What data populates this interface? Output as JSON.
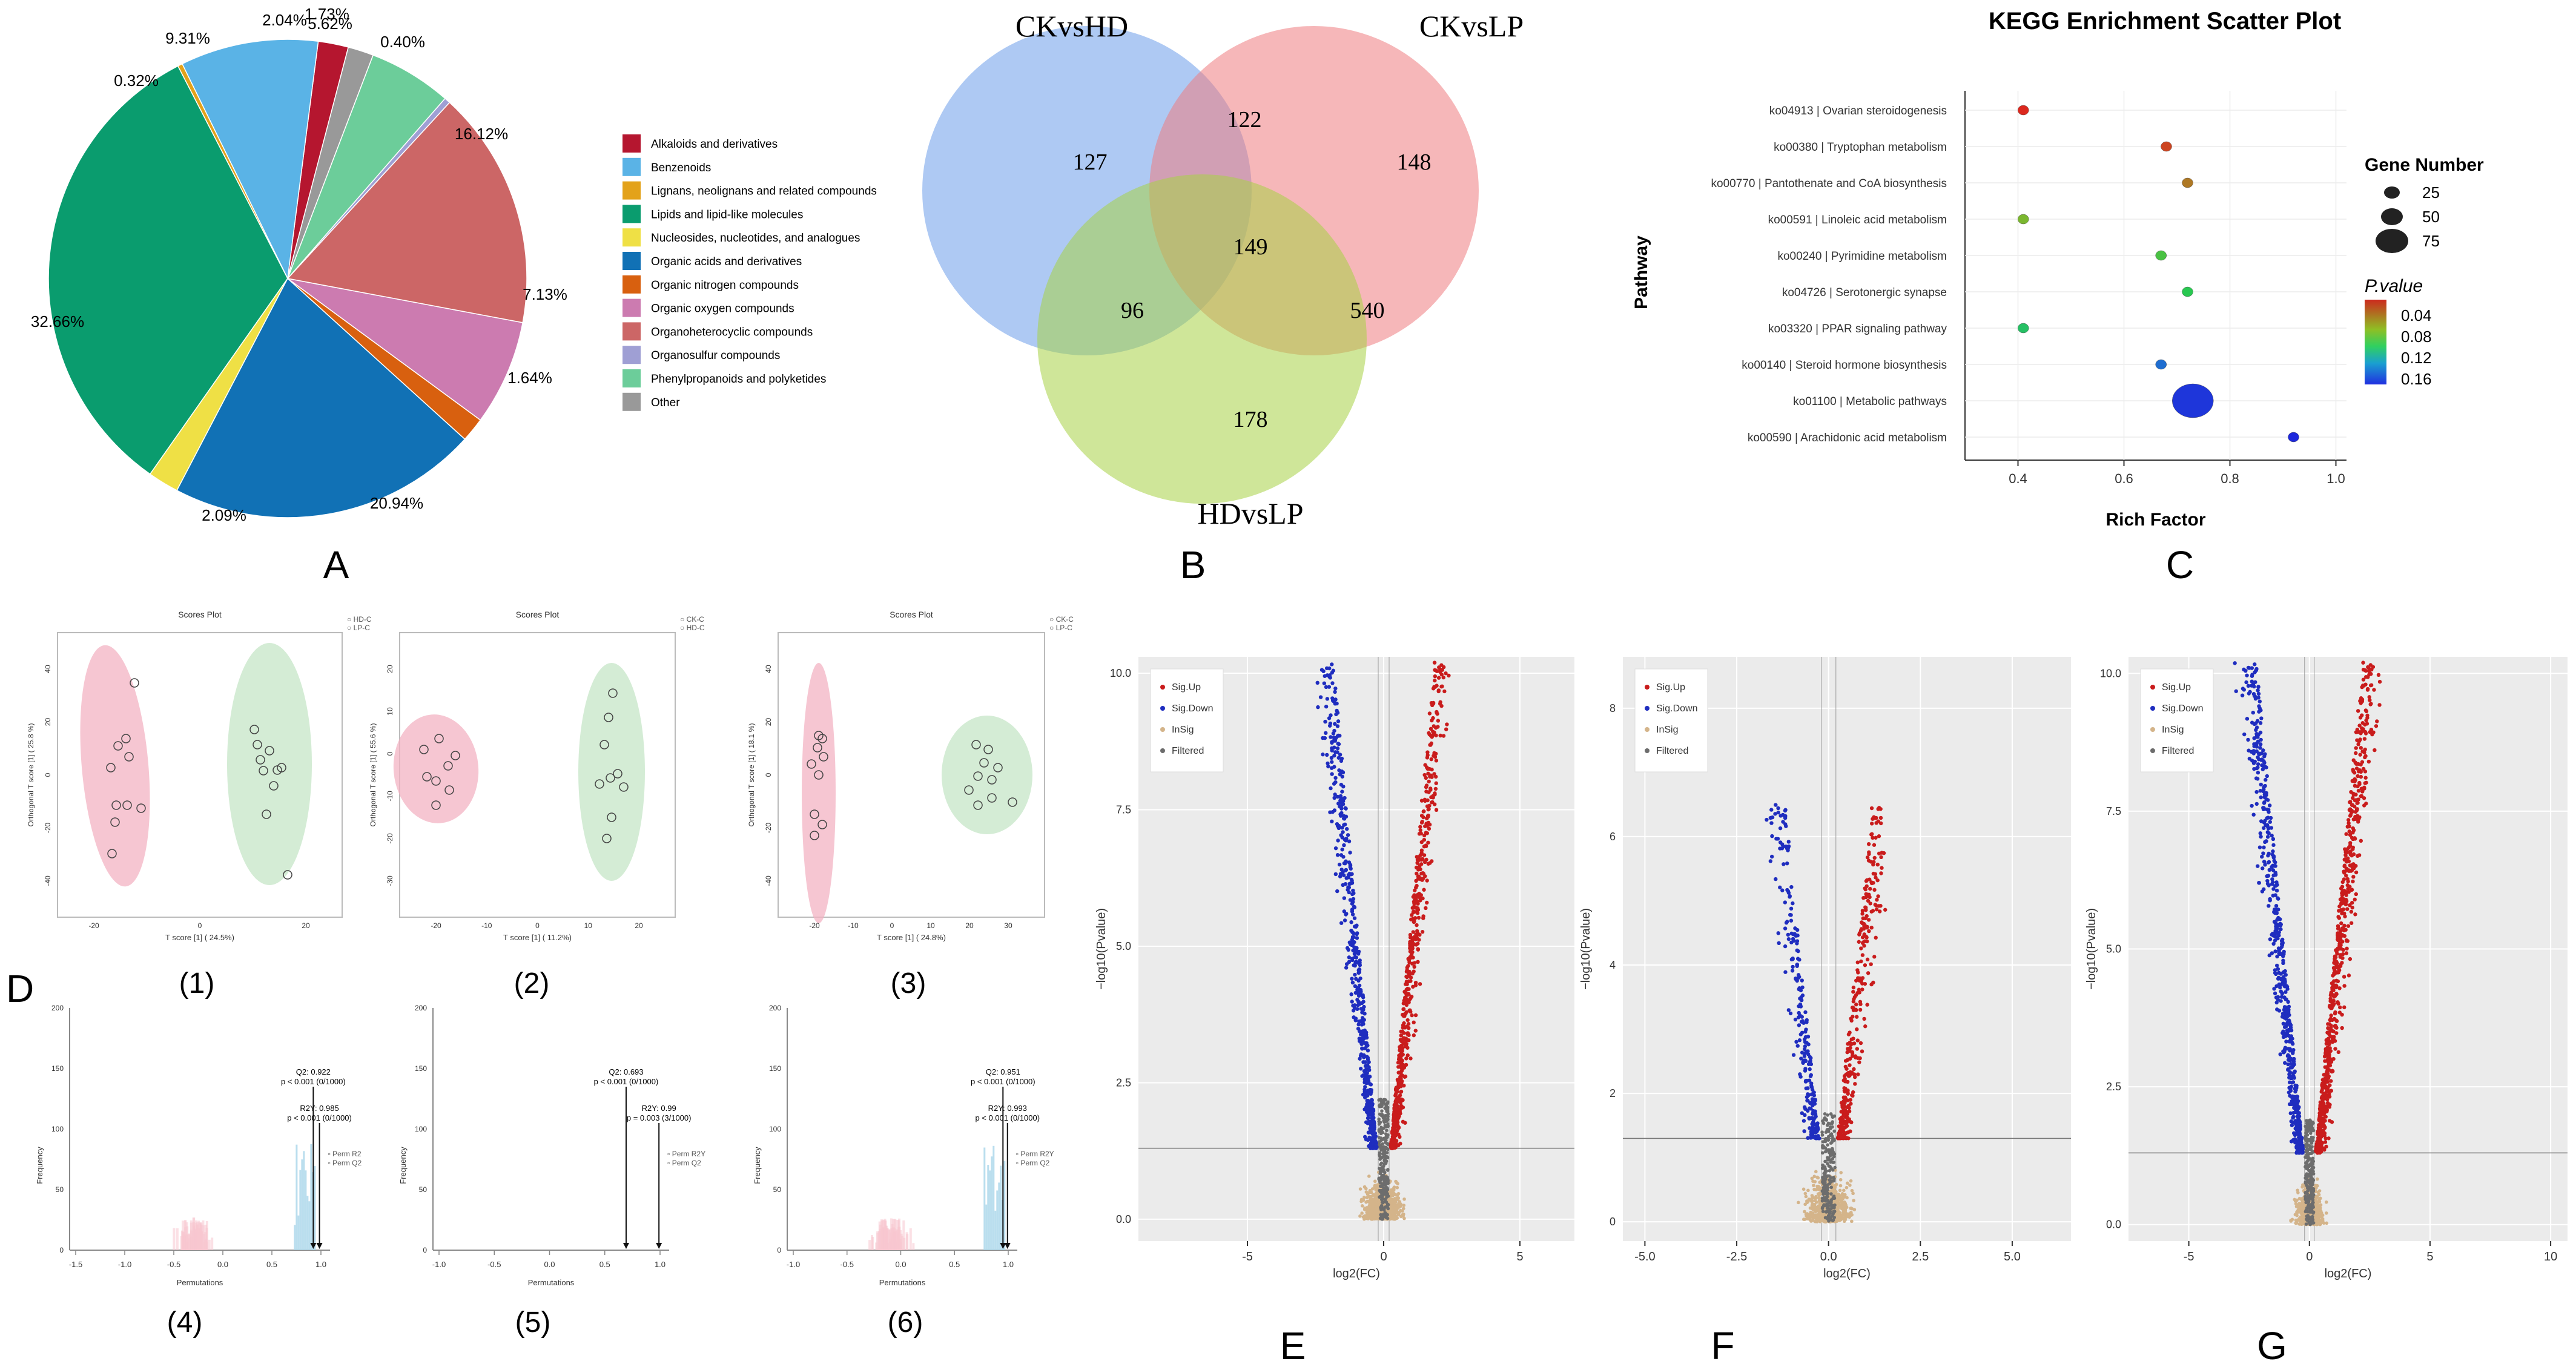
{
  "panel_labels": {
    "A": "A",
    "B": "B",
    "C": "C",
    "D": "D",
    "E": "E",
    "F": "F",
    "G": "G",
    "p1": "(1)",
    "p2": "(2)",
    "p3": "(3)",
    "p4": "(4)",
    "p5": "(5)",
    "p6": "(6)"
  },
  "chart_data": [
    {
      "id": "A",
      "type": "pie",
      "slices": [
        {
          "label": "Alkaloids and derivatives",
          "value": 2.04,
          "color": "#b5162f"
        },
        {
          "label": "Benzenoids",
          "value": 9.31,
          "color": "#5ab3e6"
        },
        {
          "label": "Lignans, neolignans and related compounds",
          "value": 0.32,
          "color": "#e3a21a"
        },
        {
          "label": "Lipids and lipid-like molecules",
          "value": 32.66,
          "color": "#0a9c6e"
        },
        {
          "label": "Nucleosides, nucleotides, and analogues",
          "value": 2.09,
          "color": "#efe045"
        },
        {
          "label": "Organic acids and derivatives",
          "value": 20.94,
          "color": "#1171b5"
        },
        {
          "label": "Organic nitrogen compounds",
          "value": 1.64,
          "color": "#d8600f"
        },
        {
          "label": "Organic oxygen compounds",
          "value": 7.13,
          "color": "#cc7bb0"
        },
        {
          "label": "Organoheterocyclic compounds",
          "value": 16.12,
          "color": "#cc6666"
        },
        {
          "label": "Organosulfur compounds",
          "value": 0.4,
          "color": "#9f9fd4"
        },
        {
          "label": "Phenylpropanoids and polyketides",
          "value": 5.62,
          "color": "#6ccd9a"
        },
        {
          "label": "Other",
          "value": 1.73,
          "color": "#999999"
        }
      ],
      "value_labels": [
        "2.04%",
        "9.31%",
        "0.32%",
        "32.66%",
        "2.09%",
        "20.94%",
        "1.64%",
        "7.13%",
        "16.12%",
        "0.40%",
        "5.62%",
        "1.73%"
      ]
    },
    {
      "id": "B",
      "type": "venn",
      "sets": [
        "CKvsHD",
        "CKvsLP",
        "HDvsLP"
      ],
      "regions": {
        "CKvsHD_only": 127,
        "CKvsLP_only": 148,
        "HDvsLP_only": 178,
        "CKvsHD_CKvsLP": 122,
        "CKvsHD_HDvsLP": 96,
        "CKvsLP_HDvsLP": 540,
        "all": 149
      },
      "region_labels": {
        "CKvsHD_only": "127",
        "CKvsLP_only": "148",
        "HDvsLP_only": "178",
        "CKvsHD_CKvsLP": "122",
        "CKvsHD_HDvsLP": "96",
        "CKvsLP_HDvsLP": "540",
        "all": "149"
      }
    },
    {
      "id": "C",
      "type": "scatter",
      "title": "KEGG Enrichment Scatter Plot",
      "xlabel": "Rich Factor",
      "ylabel": "Pathway",
      "xlim": [
        0.3,
        1.02
      ],
      "xticks": [
        0.4,
        0.6,
        0.8,
        1.0
      ],
      "xtick_labels": [
        "0.4",
        "0.6",
        "0.8",
        "1.0"
      ],
      "points": [
        {
          "pathway": "ko04913 | Ovarian steroidogenesis",
          "rich": 0.41,
          "genes": 4,
          "p": 0.03
        },
        {
          "pathway": "ko00380 | Tryptophan metabolism",
          "rich": 0.68,
          "genes": 6,
          "p": 0.042
        },
        {
          "pathway": "ko00770 | Pantothenate and CoA biosynthesis",
          "rich": 0.72,
          "genes": 4,
          "p": 0.055
        },
        {
          "pathway": "ko00591 | Linoleic acid metabolism",
          "rich": 0.41,
          "genes": 4,
          "p": 0.075
        },
        {
          "pathway": "ko00240 | Pyrimidine metabolism",
          "rich": 0.67,
          "genes": 4,
          "p": 0.09
        },
        {
          "pathway": "ko04726 | Serotonergic synapse",
          "rich": 0.72,
          "genes": 4,
          "p": 0.1
        },
        {
          "pathway": "ko03320 | PPAR signaling pathway",
          "rich": 0.41,
          "genes": 3,
          "p": 0.105
        },
        {
          "pathway": "ko00140 | Steroid hormone biosynthesis",
          "rich": 0.67,
          "genes": 4,
          "p": 0.145
        },
        {
          "pathway": "ko01100 | Metabolic pathways",
          "rich": 0.73,
          "genes": 78,
          "p": 0.165
        },
        {
          "pathway": "ko00590 | Arachidonic acid metabolism",
          "rich": 0.92,
          "genes": 3,
          "p": 0.17
        }
      ],
      "size_legend_title": "Gene Number",
      "size_legend": [
        {
          "label": "25",
          "value": 25
        },
        {
          "label": "50",
          "value": 50
        },
        {
          "label": "75",
          "value": 75
        }
      ],
      "color_legend_title": "P.value",
      "color_legend": [
        "0.04",
        "0.08",
        "0.12",
        "0.16"
      ]
    },
    {
      "id": "D1",
      "type": "scatter",
      "title": "Scores Plot",
      "xlabel": "T score [1] ( 24.5%)",
      "ylabel": "Orthogonal T score [1] ( 25.8 %)",
      "legend": [
        "HD-C",
        "LP-C"
      ],
      "xticks": [
        "-20",
        "0",
        "20"
      ],
      "yticks": [
        "40",
        "20",
        "0",
        "-20",
        "-40"
      ]
    },
    {
      "id": "D2",
      "type": "scatter",
      "title": "Scores Plot",
      "xlabel": "T score [1] ( 11.2%)",
      "ylabel": "Orthogonal T score [1] ( 55.6 %)",
      "legend": [
        "CK-C",
        "HD-C"
      ],
      "xticks": [
        "-20",
        "-10",
        "0",
        "10",
        "20"
      ],
      "yticks": [
        "20",
        "10",
        "0",
        "-10",
        "-20",
        "-30"
      ]
    },
    {
      "id": "D3",
      "type": "scatter",
      "title": "Scores Plot",
      "xlabel": "T score [1] ( 24.8%)",
      "ylabel": "Orthogonal T score [1] ( 18.1 %)",
      "legend": [
        "CK-C",
        "LP-C"
      ],
      "xticks": [
        "-20",
        "-10",
        "0",
        "10",
        "20",
        "30"
      ],
      "yticks": [
        "40",
        "20",
        "0",
        "-20",
        "-40"
      ]
    },
    {
      "id": "D4",
      "type": "histogram",
      "xlabel": "Permutations",
      "ylabel": "Frequency",
      "xticks": [
        "-1.5",
        "-1.0",
        "-0.5",
        "0.0",
        "0.5",
        "1.0"
      ],
      "yticks": [
        "200",
        "150",
        "100",
        "50",
        "0"
      ],
      "annotation1": "Q2: 0.922",
      "annotation1b": "p < 0.001 (0/1000)",
      "annotation2": "R2Y: 0.985",
      "annotation2b": "p < 0.001 (0/1000)",
      "legend": [
        "Perm R2",
        "Perm Q2"
      ]
    },
    {
      "id": "D5",
      "type": "histogram",
      "xlabel": "Permutations",
      "ylabel": "Frequency",
      "xticks": [
        "-1.0",
        "-0.5",
        "0.0",
        "0.5",
        "1.0"
      ],
      "yticks": [
        "200",
        "150",
        "100",
        "50",
        "0"
      ],
      "annotation1": "Q2: 0.693",
      "annotation1b": "p < 0.001 (0/1000)",
      "annotation2": "R2Y: 0.99",
      "annotation2b": "p = 0.003 (3/1000)",
      "legend": [
        "Perm R2Y",
        "Perm Q2"
      ]
    },
    {
      "id": "D6",
      "type": "histogram",
      "xlabel": "Permutations",
      "ylabel": "Frequency",
      "xticks": [
        "-1.0",
        "-0.5",
        "0.0",
        "0.5",
        "1.0"
      ],
      "yticks": [
        "200",
        "150",
        "100",
        "50",
        "0"
      ],
      "annotation1": "Q2: 0.951",
      "annotation1b": "p < 0.001 (0/1000)",
      "annotation2": "R2Y: 0.993",
      "annotation2b": "p < 0.001 (0/1000)",
      "legend": [
        "Perm R2Y",
        "Perm Q2"
      ]
    },
    {
      "id": "E",
      "type": "scatter",
      "subtype": "volcano",
      "xlabel": "log2(FC)",
      "ylabel": "−log10(Pvalue)",
      "xlim": [
        -9,
        7
      ],
      "ylim": [
        -0.4,
        10.3
      ],
      "xticks": [
        -5,
        0,
        5
      ],
      "xtick_labels": [
        "-5",
        "0",
        "5"
      ],
      "yticks": [
        0,
        2.5,
        5,
        7.5,
        10
      ],
      "ytick_labels": [
        "0.0",
        "2.5",
        "5.0",
        "7.5",
        "10.0"
      ],
      "legend": [
        "Sig.Up",
        "Sig.Down",
        "InSig",
        "Filtered"
      ],
      "sig_line": 1.3
    },
    {
      "id": "F",
      "type": "scatter",
      "subtype": "volcano",
      "xlabel": "log2(FC)",
      "ylabel": "−log10(Pvalue)",
      "xlim": [
        -5.6,
        6.6
      ],
      "ylim": [
        -0.3,
        8.8
      ],
      "xticks": [
        -5,
        -2.5,
        0,
        2.5,
        5
      ],
      "xtick_labels": [
        "-5.0",
        "-2.5",
        "0.0",
        "2.5",
        "5.0"
      ],
      "yticks": [
        0,
        2,
        4,
        6,
        8
      ],
      "ytick_labels": [
        "0",
        "2",
        "4",
        "6",
        "8"
      ],
      "legend": [
        "Sig.Up",
        "Sig.Down",
        "InSig",
        "Filtered"
      ],
      "sig_line": 1.3
    },
    {
      "id": "G",
      "type": "scatter",
      "subtype": "volcano",
      "xlabel": "log2(FC)",
      "ylabel": "−log10(Pvalue)",
      "xlim": [
        -7.5,
        10.7
      ],
      "ylim": [
        -0.3,
        10.3
      ],
      "xticks": [
        -5,
        0,
        5,
        10
      ],
      "xtick_labels": [
        "-5",
        "0",
        "5",
        "10"
      ],
      "yticks": [
        0,
        2.5,
        5,
        7.5,
        10
      ],
      "ytick_labels": [
        "0.0",
        "2.5",
        "5.0",
        "7.5",
        "10.0"
      ],
      "legend": [
        "Sig.Up",
        "Sig.Down",
        "InSig",
        "Filtered"
      ],
      "sig_line": 1.3
    }
  ]
}
